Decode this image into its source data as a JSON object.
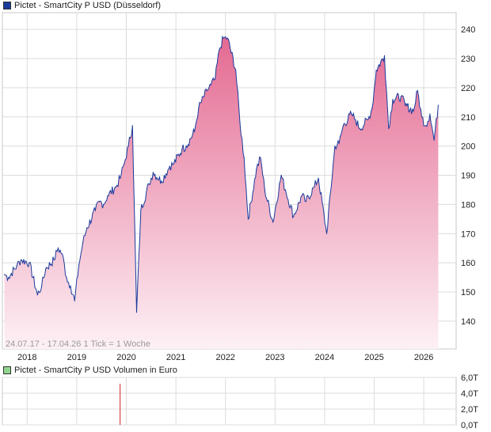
{
  "colors": {
    "line": "#1a3a9c",
    "fill_top": "#e46a92",
    "fill_bottom": "#fdf1f5",
    "grid": "#dcdcdc",
    "volume_bar": "#cc2222",
    "main_swatch": "#1a3a9c",
    "volume_swatch": "#8fd68f"
  },
  "chart_data": [
    {
      "type": "area",
      "title": "Pictet - SmartCity P USD (Düsseldorf)",
      "xlabel": "",
      "ylabel": "",
      "ylim": [
        134,
        244
      ],
      "grid": true,
      "x_ticks": [
        "2018",
        "2019",
        "2020",
        "2021",
        "2022",
        "2023",
        "2024",
        "2025",
        "2026"
      ],
      "y_ticks": [
        140,
        150,
        160,
        170,
        180,
        190,
        200,
        210,
        220,
        230,
        240
      ],
      "annotation": "24.07.17 - 17.04.26   1 Tick = 1 Woche",
      "series": [
        {
          "x": [
            "2017-07",
            "2017-08",
            "2017-10",
            "2017-11",
            "2018-01",
            "2018-03",
            "2018-04",
            "2018-05",
            "2018-07",
            "2018-08",
            "2018-09",
            "2018-10",
            "2018-11",
            "2018-12",
            "2019-01",
            "2019-02",
            "2019-03",
            "2019-05",
            "2019-06",
            "2019-07",
            "2019-08",
            "2019-10",
            "2019-11",
            "2019-12",
            "2020-01",
            "2020-02",
            "2020-03",
            "2020-04",
            "2020-06",
            "2020-07",
            "2020-09",
            "2020-11",
            "2020-12",
            "2021-02",
            "2021-03",
            "2021-05",
            "2021-06",
            "2021-08",
            "2021-09",
            "2021-10",
            "2021-11",
            "2021-12",
            "2022-01",
            "2022-03",
            "2022-04",
            "2022-05",
            "2022-06",
            "2022-08",
            "2022-09",
            "2022-10",
            "2022-12",
            "2023-02",
            "2023-03",
            "2023-05",
            "2023-07",
            "2023-08",
            "2023-10",
            "2023-11",
            "2024-01",
            "2024-03",
            "2024-04",
            "2024-05",
            "2024-07",
            "2024-08",
            "2024-09",
            "2024-11",
            "2024-12",
            "2025-01",
            "2025-03",
            "2025-04",
            "2025-05",
            "2025-07",
            "2025-08",
            "2025-10",
            "2025-11",
            "2025-12",
            "2026-01",
            "2026-02",
            "2026-03",
            "2026-04"
          ],
          "values": [
            156,
            155,
            159,
            161,
            160,
            149,
            152,
            158,
            161,
            165,
            163,
            155,
            152,
            147,
            159,
            167,
            172,
            178,
            181,
            180,
            183,
            186,
            189,
            194,
            200,
            207,
            143,
            178,
            187,
            191,
            188,
            193,
            194,
            199,
            200,
            205,
            213,
            219,
            221,
            223,
            233,
            237,
            237,
            226,
            208,
            196,
            175,
            192,
            196,
            185,
            174,
            190,
            185,
            176,
            183,
            181,
            186,
            189,
            170,
            200,
            201,
            207,
            211,
            209,
            206,
            209,
            213,
            226,
            231,
            206,
            216,
            217,
            214,
            212,
            219,
            210,
            207,
            211,
            202,
            214
          ]
        }
      ]
    },
    {
      "type": "bar",
      "title": "Pictet - SmartCity P USD Volumen in Euro",
      "xlabel": "",
      "ylabel": "",
      "ylim": [
        0,
        6
      ],
      "grid": true,
      "y_ticks": [
        "0,0T",
        "2,0T",
        "4,0T",
        "6,0T"
      ],
      "bars": [
        {
          "x": "2019-11",
          "value": 5.2
        }
      ]
    }
  ]
}
